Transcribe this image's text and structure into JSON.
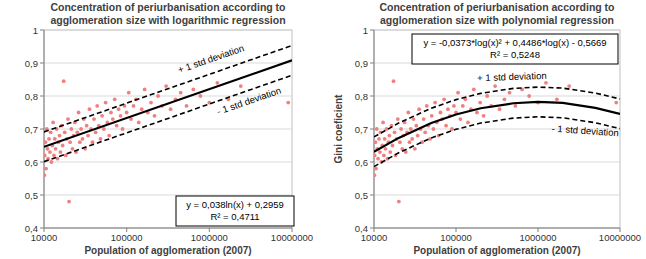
{
  "chart_data": [
    {
      "type": "scatter",
      "title": "Concentration of periurbanisation according to agglomeration size with logarithmic regression",
      "x_label": "Population of agglomeration (2007)",
      "log": "x",
      "grid": true,
      "xlim": [
        10000,
        10000000
      ],
      "ylim": [
        0.4,
        1
      ],
      "xticks": [
        10000,
        100000,
        1000000,
        10000000
      ],
      "yticks": [
        {
          "value": 0.4,
          "label": "0,4"
        },
        {
          "value": 0.5,
          "label": "0,5"
        },
        {
          "value": 0.6,
          "label": "0,6"
        },
        {
          "value": 0.7,
          "label": "0,7"
        },
        {
          "value": 0.8,
          "label": "0,8"
        },
        {
          "value": 0.9,
          "label": "0,9"
        },
        1
      ],
      "series": [
        {
          "type": "scatter",
          "color": "#f08080",
          "marker": "circle",
          "x": [
            10100,
            10200,
            10400,
            10600,
            10800,
            11000,
            11200,
            11500,
            11800,
            12000,
            12300,
            12600,
            12900,
            13200,
            13500,
            13800,
            14200,
            14600,
            15000,
            15400,
            15800,
            16300,
            16800,
            17300,
            17800,
            18300,
            18900,
            19500,
            20100,
            20700,
            21400,
            22100,
            22800,
            23600,
            24400,
            25300,
            26200,
            27100,
            28100,
            29200,
            30300,
            31500,
            32800,
            34100,
            35500,
            37000,
            38600,
            40300,
            42100,
            44000,
            46000,
            48200,
            50500,
            53000,
            55600,
            58400,
            61400,
            64600,
            68000,
            71700,
            75600,
            79800,
            84300,
            89100,
            94300,
            100000,
            106000,
            113000,
            121000,
            130000,
            140000,
            152000,
            165000,
            180000,
            197000,
            217000,
            240000,
            268000,
            300000,
            340000,
            390000,
            450000,
            530000,
            640000,
            780000,
            1000000,
            1250000,
            1700000,
            2400000,
            9000000
          ],
          "values": [
            0.56,
            0.62,
            0.66,
            0.58,
            0.7,
            0.64,
            0.61,
            0.67,
            0.63,
            0.69,
            0.6,
            0.65,
            0.72,
            0.62,
            0.67,
            0.64,
            0.7,
            0.61,
            0.66,
            0.68,
            0.63,
            0.71,
            0.65,
            0.845,
            0.69,
            0.62,
            0.67,
            0.73,
            0.48,
            0.66,
            0.7,
            0.64,
            0.68,
            0.72,
            0.63,
            0.69,
            0.75,
            0.66,
            0.7,
            0.67,
            0.73,
            0.64,
            0.71,
            0.68,
            0.76,
            0.7,
            0.66,
            0.73,
            0.69,
            0.77,
            0.71,
            0.67,
            0.74,
            0.7,
            0.78,
            0.72,
            0.68,
            0.75,
            0.73,
            0.79,
            0.71,
            0.76,
            0.74,
            0.7,
            0.77,
            0.75,
            0.81,
            0.73,
            0.77,
            0.79,
            0.72,
            0.76,
            0.82,
            0.75,
            0.78,
            0.74,
            0.8,
            0.77,
            0.83,
            0.76,
            0.79,
            0.81,
            0.77,
            0.82,
            0.8,
            0.78,
            0.84,
            0.79,
            0.83,
            0.78
          ]
        },
        {
          "type": "line",
          "color": "#000000",
          "line_style": "solid",
          "x": [
            10000,
            10000000
          ],
          "values": [
            0.646,
            0.908
          ]
        },
        {
          "type": "line",
          "color": "#000000",
          "line_style": "dashed",
          "x": [
            10000,
            10000000
          ],
          "values": [
            0.691,
            0.953
          ]
        },
        {
          "type": "line",
          "color": "#000000",
          "line_style": "dashed",
          "x": [
            10000,
            10000000
          ],
          "values": [
            0.601,
            0.863
          ]
        }
      ],
      "annotations": [
        {
          "text": "+ 1 std deviation"
        },
        {
          "text": "- 1 std deviation"
        },
        {
          "text": "y = 0,038ln(x) + 0,2959"
        },
        {
          "text": "R² = 0,4711"
        }
      ]
    },
    {
      "type": "scatter",
      "title": "Concentration of periurbanisation according to agglomeration size with polynomial regression",
      "x_label": "Population of agglomeration (2007)",
      "y_label": "Gini coeficient",
      "log": "x",
      "grid": true,
      "xlim": [
        10000,
        10000000
      ],
      "ylim": [
        0.4,
        1
      ],
      "xticks": [
        10000,
        100000,
        1000000,
        10000000
      ],
      "yticks": [
        {
          "value": 0.4,
          "label": "0,4"
        },
        {
          "value": 0.5,
          "label": "0,5"
        },
        {
          "value": 0.6,
          "label": "0,6"
        },
        {
          "value": 0.7,
          "label": "0,7"
        },
        {
          "value": 0.8,
          "label": "0,8"
        },
        {
          "value": 0.9,
          "label": "0,9"
        },
        1
      ],
      "series": [
        {
          "type": "scatter",
          "color": "#f08080",
          "marker": "circle",
          "x": [
            10100,
            10200,
            10400,
            10600,
            10800,
            11000,
            11200,
            11500,
            11800,
            12000,
            12300,
            12600,
            12900,
            13200,
            13500,
            13800,
            14200,
            14600,
            15000,
            15400,
            15800,
            16300,
            16800,
            17300,
            17800,
            18300,
            18900,
            19500,
            20100,
            20700,
            21400,
            22100,
            22800,
            23600,
            24400,
            25300,
            26200,
            27100,
            28100,
            29200,
            30300,
            31500,
            32800,
            34100,
            35500,
            37000,
            38600,
            40300,
            42100,
            44000,
            46000,
            48200,
            50500,
            53000,
            55600,
            58400,
            61400,
            64600,
            68000,
            71700,
            75600,
            79800,
            84300,
            89100,
            94300,
            100000,
            106000,
            113000,
            121000,
            130000,
            140000,
            152000,
            165000,
            180000,
            197000,
            217000,
            240000,
            268000,
            300000,
            340000,
            390000,
            450000,
            530000,
            640000,
            780000,
            1000000,
            1250000,
            1700000,
            2400000,
            9000000
          ],
          "values": [
            0.56,
            0.62,
            0.66,
            0.58,
            0.7,
            0.64,
            0.61,
            0.67,
            0.63,
            0.69,
            0.6,
            0.65,
            0.72,
            0.62,
            0.67,
            0.64,
            0.7,
            0.61,
            0.66,
            0.68,
            0.63,
            0.71,
            0.65,
            0.845,
            0.69,
            0.62,
            0.67,
            0.73,
            0.48,
            0.66,
            0.7,
            0.64,
            0.68,
            0.72,
            0.63,
            0.69,
            0.75,
            0.66,
            0.7,
            0.67,
            0.73,
            0.64,
            0.71,
            0.68,
            0.76,
            0.7,
            0.66,
            0.73,
            0.69,
            0.77,
            0.71,
            0.67,
            0.74,
            0.7,
            0.78,
            0.72,
            0.68,
            0.75,
            0.73,
            0.79,
            0.71,
            0.76,
            0.74,
            0.7,
            0.77,
            0.75,
            0.81,
            0.73,
            0.77,
            0.79,
            0.72,
            0.76,
            0.82,
            0.75,
            0.78,
            0.74,
            0.8,
            0.77,
            0.83,
            0.76,
            0.79,
            0.81,
            0.77,
            0.82,
            0.8,
            0.78,
            0.84,
            0.79,
            0.83,
            0.78
          ]
        },
        {
          "type": "line",
          "color": "#000000",
          "line_style": "solid",
          "x": [
            10000,
            20000,
            50000,
            100000,
            200000,
            500000,
            1000000,
            2000000,
            5000000,
            10000000
          ],
          "values": [
            0.631,
            0.673,
            0.718,
            0.744,
            0.763,
            0.778,
            0.782,
            0.779,
            0.764,
            0.746
          ]
        },
        {
          "type": "line",
          "color": "#000000",
          "line_style": "dashed",
          "x": [
            10000,
            20000,
            50000,
            100000,
            200000,
            500000,
            1000000,
            2000000,
            5000000,
            10000000
          ],
          "values": [
            0.676,
            0.718,
            0.763,
            0.789,
            0.808,
            0.823,
            0.827,
            0.824,
            0.809,
            0.791
          ]
        },
        {
          "type": "line",
          "color": "#000000",
          "line_style": "dashed",
          "x": [
            10000,
            20000,
            50000,
            100000,
            200000,
            500000,
            1000000,
            2000000,
            5000000,
            10000000
          ],
          "values": [
            0.586,
            0.628,
            0.673,
            0.699,
            0.718,
            0.733,
            0.737,
            0.734,
            0.719,
            0.701
          ]
        }
      ],
      "annotations": [
        {
          "text": "+ 1 std deviation"
        },
        {
          "text": "- 1 std deviation"
        },
        {
          "text": "y = -0,0373*log(x)² + 0,4486*log(x) - 0,5669"
        },
        {
          "text": "R² = 0,5248"
        }
      ]
    }
  ]
}
